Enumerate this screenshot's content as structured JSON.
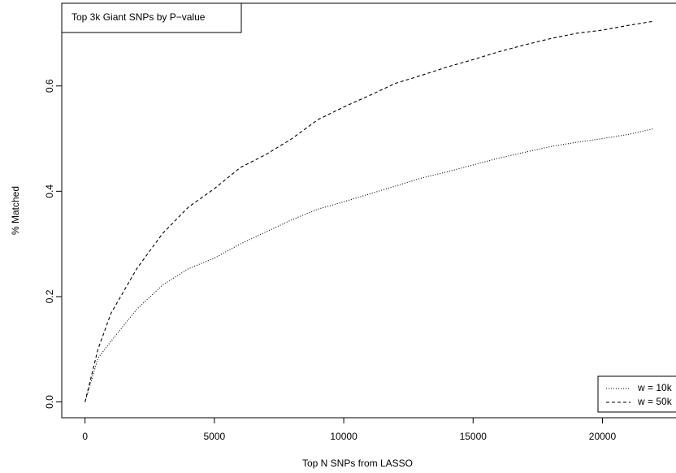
{
  "chart_data": {
    "type": "line",
    "annotation": "Top 3k Giant SNPs by P−value",
    "x_label": "Top N SNPs from LASSO",
    "y_label": "% Matched",
    "x": [
      0,
      500,
      1000,
      2000,
      3000,
      4000,
      5000,
      6000,
      7000,
      8000,
      9000,
      10000,
      11000,
      12000,
      13000,
      14000,
      15000,
      16000,
      17000,
      18000,
      19000,
      20000,
      21000,
      22000
    ],
    "series": [
      {
        "name": "w = 10k",
        "color": "#000000",
        "line_style": "dotted",
        "values": [
          0,
          0.083,
          0.115,
          0.176,
          0.222,
          0.253,
          0.273,
          0.3,
          0.323,
          0.346,
          0.366,
          0.38,
          0.395,
          0.41,
          0.425,
          0.437,
          0.45,
          0.463,
          0.474,
          0.485,
          0.493,
          0.5,
          0.508,
          0.519
        ]
      },
      {
        "name": "w = 50k",
        "color": "#000000",
        "line_style": "dashed",
        "values": [
          0,
          0.1,
          0.168,
          0.253,
          0.32,
          0.37,
          0.405,
          0.445,
          0.47,
          0.5,
          0.536,
          0.56,
          0.582,
          0.605,
          0.62,
          0.636,
          0.65,
          0.665,
          0.678,
          0.69,
          0.7,
          0.706,
          0.715,
          0.723
        ]
      }
    ],
    "xlim": [
      -900,
      23000
    ],
    "ylim": [
      -0.03,
      0.757
    ],
    "xticks": [
      0,
      5000,
      10000,
      15000,
      20000
    ],
    "yticks": [
      {
        "value": 0,
        "label": "0.0"
      },
      0.2,
      0.4,
      0.6
    ],
    "legend": "bottomright",
    "grid": false
  }
}
